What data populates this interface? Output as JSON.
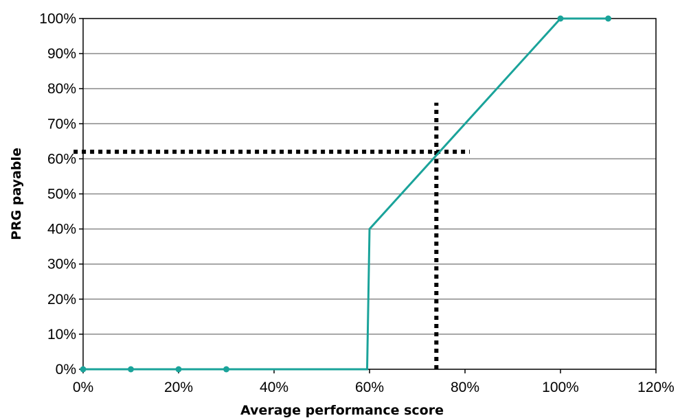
{
  "chart_data": {
    "type": "line",
    "title": "",
    "xlabel": "Average performance score",
    "ylabel": "PRG payable",
    "xlim": [
      0,
      120
    ],
    "ylim": [
      0,
      100
    ],
    "grid": "horizontal",
    "legend": "none",
    "x_ticks": [
      "0%",
      "20%",
      "40%",
      "60%",
      "80%",
      "100%",
      "120%"
    ],
    "y_ticks": [
      "0%",
      "10%",
      "20%",
      "30%",
      "40%",
      "50%",
      "60%",
      "70%",
      "80%",
      "90%",
      "100%"
    ],
    "series": [
      {
        "color": "#1aa39a",
        "points": [
          {
            "x": 0,
            "y": 0
          },
          {
            "x": 10,
            "y": 0
          },
          {
            "x": 20,
            "y": 0
          },
          {
            "x": 30,
            "y": 0
          },
          {
            "x": 59.5,
            "y": 0
          },
          {
            "x": 60,
            "y": 40
          },
          {
            "x": 100,
            "y": 100
          },
          {
            "x": 110,
            "y": 100
          }
        ],
        "markers_at": [
          0,
          10,
          20,
          30,
          100,
          110
        ]
      }
    ],
    "reference_lines": [
      {
        "orientation": "vertical",
        "x": 74,
        "y_from": 0,
        "y_to": 76,
        "style": "dotted",
        "color": "#000000"
      },
      {
        "orientation": "horizontal",
        "y": 62,
        "x_from": -2,
        "x_to": 81,
        "style": "dotted",
        "color": "#000000"
      }
    ]
  }
}
